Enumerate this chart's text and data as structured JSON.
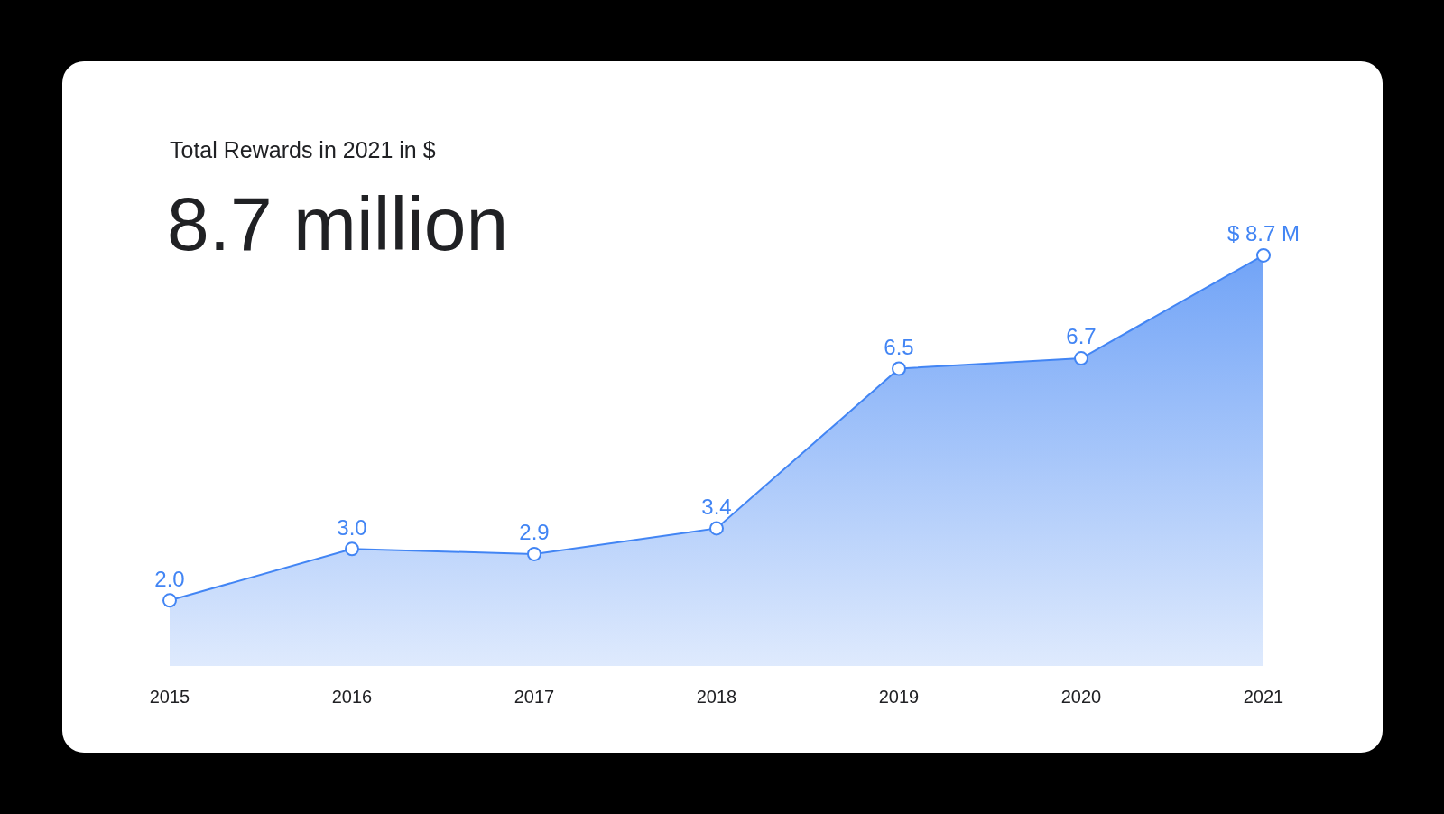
{
  "chart_data": {
    "type": "area",
    "title": "Total Rewards in 2021 in $",
    "subtitle": "8.7 million",
    "categories": [
      "2015",
      "2016",
      "2017",
      "2018",
      "2019",
      "2020",
      "2021"
    ],
    "series": [
      {
        "color": "#4285f4",
        "values": [
          2.0,
          3.0,
          2.9,
          3.4,
          6.5,
          6.7,
          8.7
        ],
        "value_labels": [
          "2.0",
          "3.0",
          "2.9",
          "3.4",
          "6.5",
          "6.7",
          "$ 8.7 M"
        ]
      }
    ],
    "tick_labels": "x",
    "marker": "circle",
    "line_style": "solid",
    "grid": false
  }
}
